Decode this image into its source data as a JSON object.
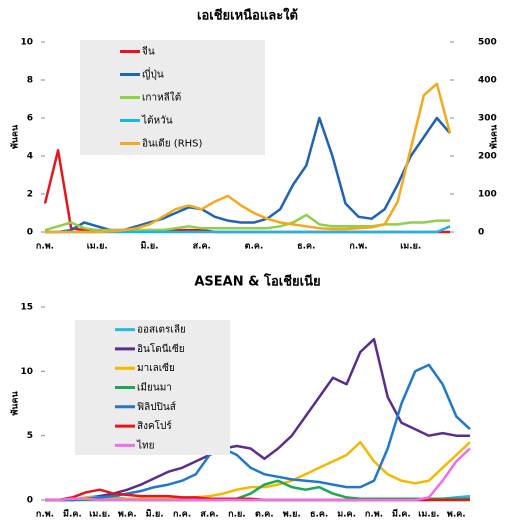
{
  "chart_data": [
    {
      "type": "line",
      "title": "เอเชียเหนือและใต้",
      "y_label": "พันคน",
      "y2_label": "พันคน",
      "categories": [
        "ก.พ.",
        null,
        null,
        null,
        "เม.ย.",
        null,
        null,
        null,
        "มิ.ย.",
        null,
        null,
        null,
        "ส.ค.",
        null,
        null,
        null,
        "ต.ค.",
        null,
        null,
        null,
        "ธ.ค.",
        null,
        null,
        null,
        "ก.พ.",
        null,
        null,
        null,
        "เม.ย.",
        null,
        null,
        null
      ],
      "ylim": [
        0,
        10
      ],
      "yticks": [
        0,
        2,
        4,
        6,
        8,
        10
      ],
      "y2lim": [
        0,
        500
      ],
      "y2ticks": [
        0,
        100,
        200,
        300,
        400,
        500
      ],
      "legend": "upper-left",
      "series": [
        {
          "name": "จีน",
          "color": "#e8141b",
          "values": [
            1.5,
            4.3,
            0.2,
            0.1,
            0.1,
            0.1,
            0.1,
            0.1,
            0.1,
            0.1,
            0.1,
            0.1,
            0.1,
            0,
            0,
            0,
            0,
            0,
            0,
            0,
            0,
            0,
            0,
            0,
            0,
            0,
            0,
            0,
            0,
            0,
            0,
            0
          ]
        },
        {
          "name": "ญี่ปุ่น",
          "color": "#1f63b4",
          "values": [
            0,
            0,
            0.1,
            0.5,
            0.3,
            0.1,
            0.1,
            0.3,
            0.5,
            0.7,
            1.0,
            1.3,
            1.2,
            0.8,
            0.6,
            0.5,
            0.5,
            0.7,
            1.2,
            2.5,
            3.5,
            6.0,
            4.0,
            1.5,
            0.8,
            0.7,
            1.2,
            2.5,
            4.0,
            5.0,
            6.0,
            5.2
          ]
        },
        {
          "name": "เกาหลีใต้",
          "color": "#8dd04a",
          "values": [
            0.1,
            0.3,
            0.5,
            0.2,
            0.1,
            0.1,
            0.1,
            0.1,
            0.1,
            0.1,
            0.2,
            0.3,
            0.2,
            0.2,
            0.2,
            0.2,
            0.2,
            0.2,
            0.3,
            0.5,
            0.9,
            0.4,
            0.3,
            0.3,
            0.3,
            0.3,
            0.4,
            0.4,
            0.5,
            0.5,
            0.6,
            0.6
          ]
        },
        {
          "name": "ไต้หวัน",
          "color": "#18b7e8",
          "values": [
            0,
            0,
            0,
            0,
            0,
            0,
            0,
            0,
            0,
            0,
            0,
            0,
            0,
            0,
            0,
            0,
            0,
            0,
            0,
            0,
            0,
            0,
            0,
            0,
            0,
            0,
            0,
            0,
            0,
            0,
            0,
            0.3
          ]
        },
        {
          "name": "อินเดีย (RHS)",
          "color": "#f6a81c",
          "axis": "y2",
          "values": [
            0,
            0,
            0,
            0,
            0,
            2,
            5,
            10,
            20,
            40,
            60,
            70,
            60,
            80,
            95,
            70,
            50,
            35,
            25,
            20,
            15,
            10,
            8,
            8,
            10,
            12,
            20,
            80,
            220,
            360,
            390,
            260
          ]
        }
      ]
    },
    {
      "type": "line",
      "title": "ASEAN & โอเชียเนีย",
      "y_label": "พันคน",
      "categories": [
        "ก.พ.",
        null,
        "มี.ค.",
        null,
        "เม.ย.",
        null,
        "พ.ค.",
        null,
        "มิ.ย.",
        null,
        "ก.ค.",
        null,
        "ส.ค.",
        null,
        "ก.ย.",
        null,
        "ต.ค.",
        null,
        "พ.ย.",
        null,
        "ธ.ค.",
        null,
        "ม.ค.",
        null,
        "ก.พ.",
        null,
        "มี.ค.",
        null,
        "เม.ย.",
        null,
        "พ.ค.",
        null
      ],
      "ylim": [
        0,
        15
      ],
      "yticks": [
        0,
        5,
        10,
        15
      ],
      "legend": "upper-left",
      "series": [
        {
          "name": "ออสเตรเลีย",
          "color": "#2ab6e8",
          "values": [
            0,
            0,
            0,
            0.2,
            0.3,
            0.2,
            0.1,
            0,
            0,
            0,
            0,
            0,
            0,
            0,
            0,
            0,
            0,
            0,
            0,
            0,
            0,
            0,
            0,
            0,
            0,
            0,
            0,
            0,
            0,
            0.1,
            0.2,
            0.3
          ]
        },
        {
          "name": "อินโดนีเซีย",
          "color": "#5b2d8e",
          "values": [
            0,
            0,
            0,
            0.1,
            0.3,
            0.5,
            0.8,
            1.2,
            1.7,
            2.2,
            2.5,
            3.0,
            3.5,
            4.0,
            4.2,
            4.0,
            3.2,
            4.0,
            5.0,
            6.5,
            8.0,
            9.5,
            9.0,
            11.5,
            12.5,
            8.0,
            6.0,
            5.5,
            5.0,
            5.2,
            5.0,
            5.0
          ]
        },
        {
          "name": "มาเลเซีย",
          "color": "#f5b800",
          "values": [
            0,
            0,
            0,
            0.2,
            0.2,
            0.1,
            0.1,
            0.1,
            0.1,
            0.1,
            0.1,
            0.2,
            0.3,
            0.5,
            0.8,
            1.0,
            1.0,
            1.2,
            1.5,
            2.0,
            2.5,
            3.0,
            3.5,
            4.5,
            3.0,
            2.0,
            1.5,
            1.3,
            1.5,
            2.5,
            3.5,
            4.5
          ]
        },
        {
          "name": "เมียนมา",
          "color": "#1aa850",
          "values": [
            0,
            0,
            0,
            0,
            0,
            0,
            0,
            0,
            0,
            0,
            0,
            0,
            0,
            0,
            0.1,
            0.5,
            1.2,
            1.5,
            1.0,
            0.8,
            1.0,
            0.5,
            0.2,
            0.1,
            0.1,
            0.1,
            0.1,
            0.1,
            0.1,
            0.1,
            0.1,
            0.1
          ]
        },
        {
          "name": "ฟิลิปปินส์",
          "color": "#1f78c8",
          "values": [
            0,
            0,
            0,
            0.1,
            0.2,
            0.3,
            0.5,
            0.7,
            1.0,
            1.2,
            1.5,
            2.0,
            3.5,
            4.0,
            3.5,
            2.5,
            2.0,
            1.8,
            1.6,
            1.5,
            1.4,
            1.2,
            1.0,
            1.0,
            1.5,
            4.0,
            7.5,
            10.0,
            10.5,
            9.0,
            6.5,
            5.5
          ]
        },
        {
          "name": "สิงคโปร์",
          "color": "#e8141b",
          "values": [
            0,
            0,
            0.2,
            0.6,
            0.8,
            0.5,
            0.4,
            0.3,
            0.3,
            0.3,
            0.2,
            0.2,
            0.1,
            0.1,
            0.1,
            0.1,
            0,
            0,
            0,
            0,
            0,
            0,
            0,
            0,
            0,
            0,
            0,
            0,
            0,
            0,
            0,
            0
          ]
        },
        {
          "name": "ไทย",
          "color": "#f06ce8",
          "values": [
            0,
            0,
            0.1,
            0.1,
            0,
            0,
            0,
            0,
            0,
            0,
            0,
            0,
            0,
            0,
            0,
            0,
            0,
            0,
            0,
            0,
            0,
            0,
            0,
            0,
            0,
            0,
            0,
            0,
            0.2,
            1.5,
            3.0,
            4.0
          ]
        }
      ]
    }
  ]
}
